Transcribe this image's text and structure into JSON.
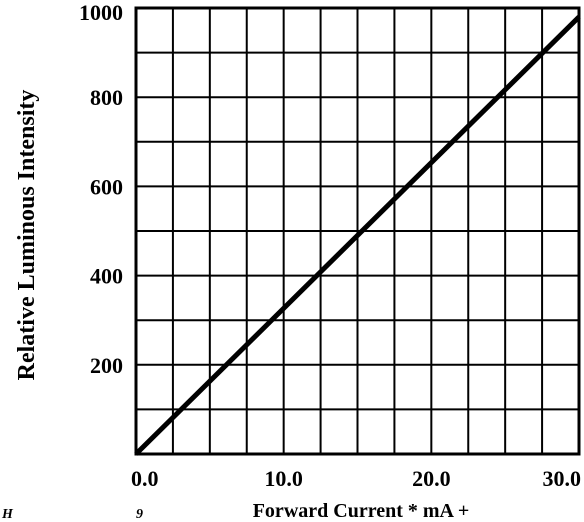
{
  "chart_data": {
    "type": "line",
    "title": "",
    "xlabel": "Forward Current  * mA +",
    "ylabel": "Relative Luminous Intensity",
    "xlim": [
      0,
      30
    ],
    "ylim": [
      0,
      1000
    ],
    "x_ticks": [
      {
        "value": 0,
        "label": "0.0"
      },
      {
        "value": 10,
        "label": "10.0"
      },
      {
        "value": 20,
        "label": "20.0"
      },
      {
        "value": 30,
        "label": "30.0"
      }
    ],
    "y_ticks": [
      {
        "value": 200,
        "label": "200"
      },
      {
        "value": 400,
        "label": "400"
      },
      {
        "value": 600,
        "label": "600"
      },
      {
        "value": 800,
        "label": "800"
      },
      {
        "value": 1000,
        "label": "1000"
      }
    ],
    "x_grid_step": 2.5,
    "y_grid_step": 100,
    "grid": true,
    "legend": "none",
    "series": [
      {
        "x": [
          0,
          30
        ],
        "values": [
          0,
          980
        ]
      }
    ],
    "line_color": "#000000"
  },
  "stray_marks": {
    "left": "H",
    "middle": "9"
  }
}
